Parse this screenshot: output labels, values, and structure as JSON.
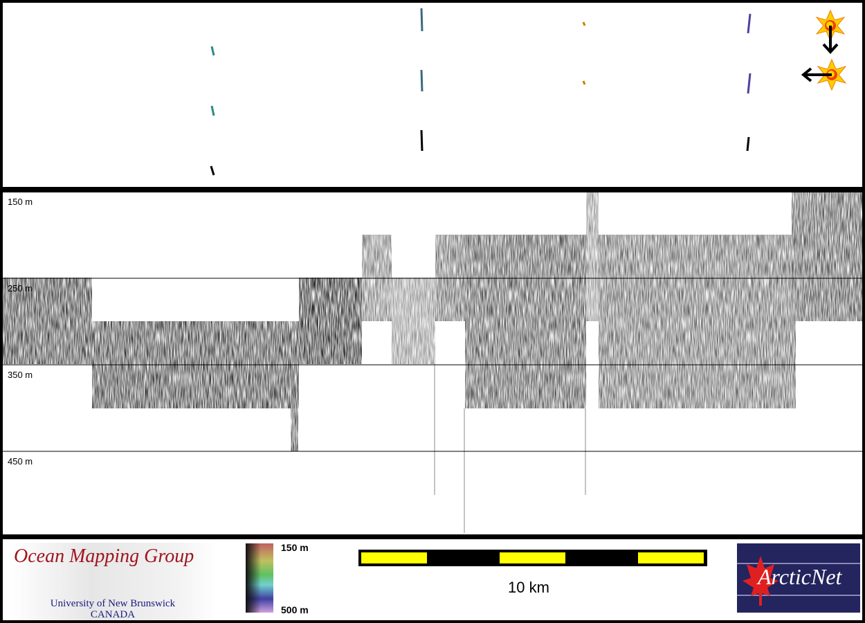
{
  "depth_axis": {
    "labels": [
      "150 m",
      "250 m",
      "350 m",
      "450 m"
    ],
    "values_m": [
      150,
      250,
      350,
      450
    ]
  },
  "legend": {
    "colorbar_top": "150 m",
    "colorbar_bottom": "500 m",
    "scale_label": "10 km"
  },
  "icons": {
    "sun_down_arrow": "sun-arrow-down-icon",
    "sun_left_arrow": "sun-arrow-left-icon"
  },
  "logos": {
    "omg_title": "Ocean Mapping Group",
    "omg_line1": "University of New Brunswick",
    "omg_line2": "CANADA",
    "arcticnet": "ArcticNet"
  },
  "colors": {
    "scale_bar": "#ffff00",
    "omg_red": "#a0141e",
    "arcticnet_blue": "#24245e"
  }
}
